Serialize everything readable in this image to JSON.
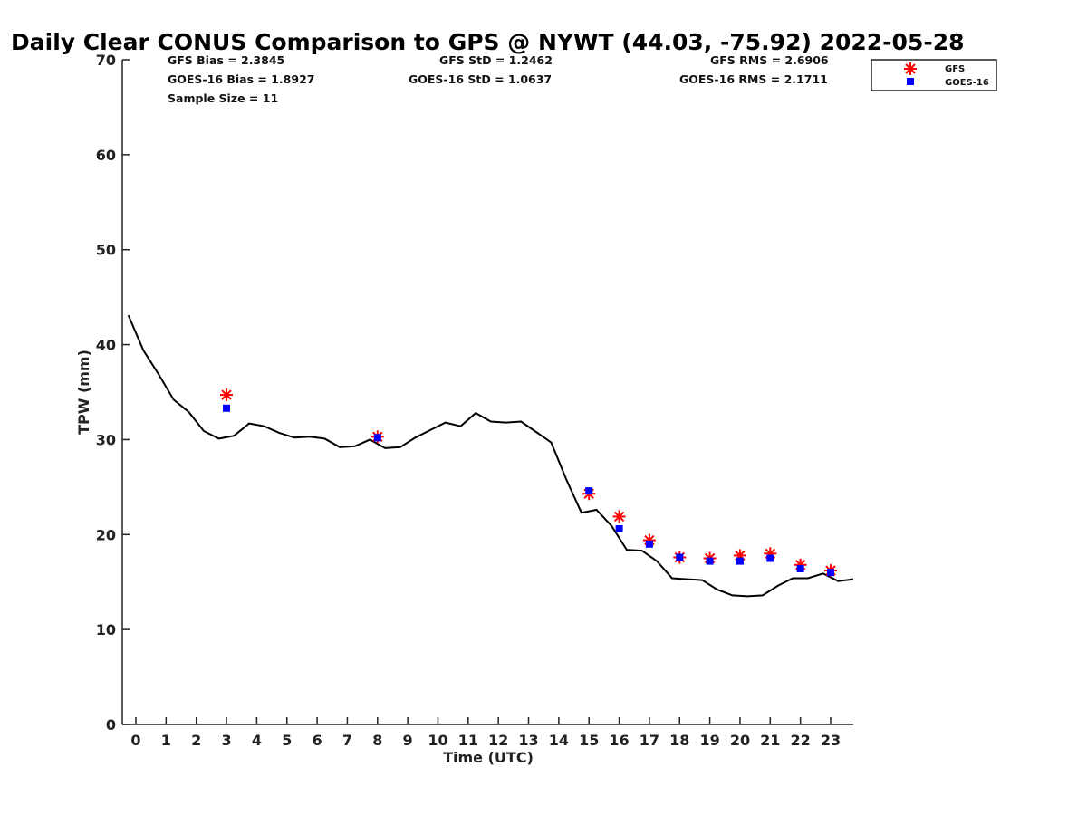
{
  "chart_data": {
    "type": "line",
    "title": "Daily Clear CONUS Comparison to GPS @ NYWT (44.03, -75.92) 2022-05-28",
    "xlabel": "Time (UTC)",
    "ylabel": "TPW (mm)",
    "xlim": [
      -0.45,
      23.75
    ],
    "ylim": [
      0,
      70
    ],
    "x_ticks": [
      "0",
      "1",
      "2",
      "3",
      "4",
      "5",
      "6",
      "7",
      "8",
      "9",
      "10",
      "11",
      "12",
      "13",
      "14",
      "15",
      "16",
      "17",
      "18",
      "19",
      "20",
      "21",
      "22",
      "23"
    ],
    "y_ticks": [
      "0",
      "10",
      "20",
      "30",
      "40",
      "50",
      "60",
      "70"
    ],
    "grid": false,
    "legend_position": "top-right",
    "stats": [
      "GFS Bias = 2.3845",
      "GFS StD = 1.2462",
      "GFS RMS = 2.6906",
      "GOES-16 Bias = 1.8927",
      "GOES-16 StD = 1.0637",
      "GOES-16 RMS = 2.1711",
      "Sample Size = 11"
    ],
    "legend": [
      "GFS",
      "GOES-16"
    ],
    "colors": {
      "line": "#000000",
      "gfs": "#ff0000",
      "goes": "#0000ff"
    },
    "series": [
      {
        "x": [
          -0.25,
          0.25,
          0.75,
          1.25,
          1.75,
          2.25,
          2.75,
          3.25,
          3.75,
          4.25,
          4.75,
          5.25,
          5.75,
          6.25,
          6.75,
          7.25,
          7.75,
          8.25,
          8.75,
          9.25,
          9.75,
          10.25,
          10.75,
          11.25,
          11.75,
          12.25,
          12.75,
          13.25,
          13.75,
          14.25,
          14.75,
          15.25,
          15.75,
          16.25,
          16.75,
          17.25,
          17.75,
          18.25,
          18.75,
          19.25,
          19.75,
          20.25,
          20.75,
          21.25,
          21.75,
          22.25,
          22.75,
          23.25,
          23.75
        ],
        "values": [
          43.1,
          39.4,
          36.9,
          34.2,
          32.9,
          30.9,
          30.1,
          30.4,
          31.7,
          31.4,
          30.7,
          30.2,
          30.3,
          30.1,
          29.2,
          29.3,
          30.0,
          29.1,
          29.2,
          30.2,
          31.0,
          31.8,
          31.4,
          32.8,
          31.9,
          31.8,
          31.9,
          30.8,
          29.7,
          25.8,
          22.3,
          22.6,
          20.9,
          18.4,
          18.3,
          17.2,
          15.4,
          15.3,
          15.2,
          14.2,
          13.6,
          13.5,
          13.6,
          14.6,
          15.4,
          15.4,
          15.9,
          15.1,
          15.3
        ]
      },
      {
        "name": "GFS",
        "x": [
          3,
          8,
          15,
          16,
          17,
          18,
          19,
          20,
          21,
          22,
          23
        ],
        "values": [
          34.7,
          30.3,
          24.3,
          21.9,
          19.4,
          17.6,
          17.5,
          17.8,
          18.0,
          16.8,
          16.2
        ]
      },
      {
        "name": "GOES-16",
        "x": [
          3,
          8,
          15,
          16,
          17,
          18,
          19,
          20,
          21,
          22,
          23
        ],
        "values": [
          33.3,
          30.2,
          24.6,
          20.6,
          19.0,
          17.6,
          17.2,
          17.2,
          17.5,
          16.4,
          16.0
        ]
      }
    ]
  }
}
